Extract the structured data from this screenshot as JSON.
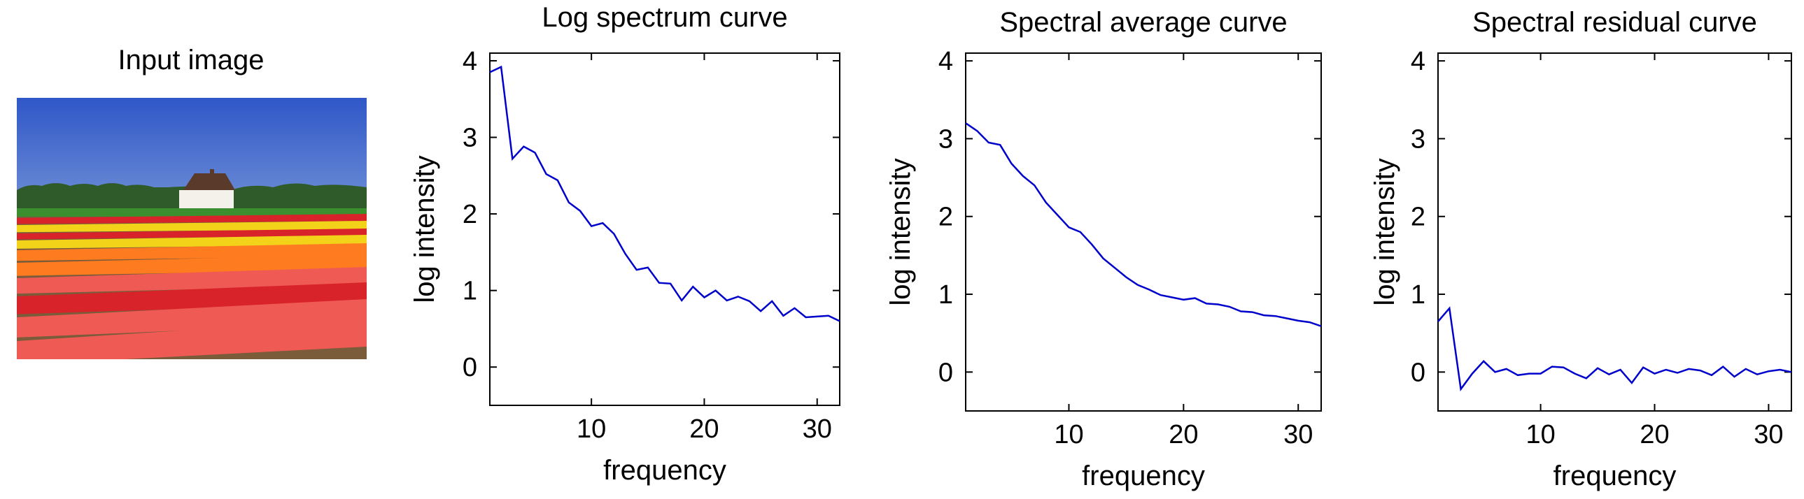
{
  "input_panel": {
    "title": "Input image",
    "colors": {
      "sky_top": "#2f57c8",
      "sky_bottom": "#6f8fd6",
      "trees": "#2f5a2a",
      "grass": "#3c8f2e",
      "red": "#d8232a",
      "yellow": "#f3d21a",
      "orange": "#ff7b1f",
      "pink": "#ef5a55",
      "soil": "#7a5b3a",
      "house": "#f3f1ea",
      "roof": "#5a3a2a"
    }
  },
  "chart_data": [
    {
      "type": "line",
      "title": "Log spectrum curve",
      "xlabel": "frequency",
      "ylabel": "log intensity",
      "xlim": [
        1,
        32
      ],
      "ylim": [
        -0.5,
        4.1
      ],
      "xticks": [
        10,
        20,
        30
      ],
      "yticks": [
        0,
        1,
        2,
        3,
        4
      ],
      "line_color": "#0000cc",
      "x": [
        1,
        2,
        3,
        4,
        5,
        6,
        7,
        8,
        9,
        10,
        11,
        12,
        13,
        14,
        15,
        16,
        17,
        18,
        19,
        20,
        21,
        22,
        23,
        24,
        25,
        26,
        27,
        28,
        29,
        30,
        31,
        32
      ],
      "values": [
        3.85,
        3.92,
        2.72,
        2.88,
        2.8,
        2.52,
        2.44,
        2.15,
        2.04,
        1.84,
        1.88,
        1.74,
        1.48,
        1.27,
        1.3,
        1.1,
        1.09,
        0.87,
        1.05,
        0.91,
        1.0,
        0.87,
        0.92,
        0.86,
        0.73,
        0.86,
        0.67,
        0.77,
        0.65,
        0.66,
        0.67,
        0.6
      ]
    },
    {
      "type": "line",
      "title": "Spectral average curve",
      "xlabel": "frequency",
      "ylabel": "log intensity",
      "xlim": [
        1,
        32
      ],
      "ylim": [
        -0.5,
        4.1
      ],
      "xticks": [
        10,
        20,
        30
      ],
      "yticks": [
        0,
        1,
        2,
        3,
        4
      ],
      "line_color": "#0000cc",
      "x": [
        1,
        2,
        3,
        4,
        5,
        6,
        7,
        8,
        9,
        10,
        11,
        12,
        13,
        14,
        15,
        16,
        17,
        18,
        19,
        20,
        21,
        22,
        23,
        24,
        25,
        26,
        27,
        28,
        29,
        30,
        31,
        32
      ],
      "values": [
        3.2,
        3.1,
        2.95,
        2.92,
        2.68,
        2.52,
        2.4,
        2.18,
        2.02,
        1.86,
        1.8,
        1.64,
        1.46,
        1.34,
        1.22,
        1.12,
        1.06,
        0.99,
        0.96,
        0.93,
        0.95,
        0.88,
        0.87,
        0.84,
        0.78,
        0.77,
        0.73,
        0.72,
        0.69,
        0.66,
        0.64,
        0.59
      ]
    },
    {
      "type": "line",
      "title": "Spectral residual curve",
      "xlabel": "frequency",
      "ylabel": "log intensity",
      "xlim": [
        1,
        32
      ],
      "ylim": [
        -0.5,
        4.1
      ],
      "xticks": [
        10,
        20,
        30
      ],
      "yticks": [
        0,
        1,
        2,
        3,
        4
      ],
      "line_color": "#0000cc",
      "x": [
        1,
        2,
        3,
        4,
        5,
        6,
        7,
        8,
        9,
        10,
        11,
        12,
        13,
        14,
        15,
        16,
        17,
        18,
        19,
        20,
        21,
        22,
        23,
        24,
        25,
        26,
        27,
        28,
        29,
        30,
        31,
        32
      ],
      "values": [
        0.65,
        0.82,
        -0.22,
        -0.02,
        0.14,
        0.0,
        0.04,
        -0.04,
        -0.02,
        -0.02,
        0.07,
        0.06,
        -0.02,
        -0.08,
        0.05,
        -0.03,
        0.03,
        -0.14,
        0.06,
        -0.02,
        0.03,
        -0.01,
        0.04,
        0.02,
        -0.04,
        0.07,
        -0.06,
        0.04,
        -0.03,
        0.01,
        0.03,
        0.0
      ]
    }
  ]
}
